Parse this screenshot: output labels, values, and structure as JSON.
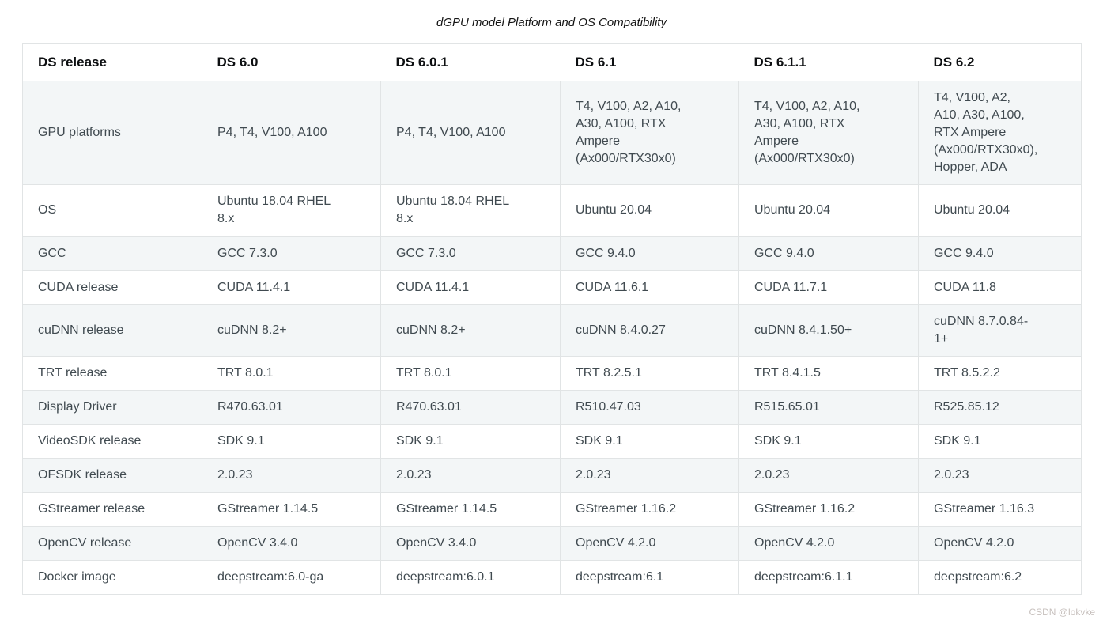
{
  "caption": "dGPU model Platform and OS Compatibility",
  "watermark": "CSDN @lokvke",
  "table": {
    "columns": [
      "DS release",
      "DS 6.0",
      "DS 6.0.1",
      "DS 6.1",
      "DS 6.1.1",
      "DS 6.2"
    ],
    "rows": [
      {
        "label": "GPU platforms",
        "values": [
          "P4, T4, V100, A100",
          "P4, T4, V100, A100",
          "T4, V100, A2, A10,\nA30, A100, RTX\nAmpere\n(Ax000/RTX30x0)",
          "T4, V100, A2, A10,\nA30, A100, RTX\nAmpere\n(Ax000/RTX30x0)",
          "T4, V100, A2,\nA10, A30, A100,\nRTX Ampere\n(Ax000/RTX30x0),\nHopper, ADA"
        ]
      },
      {
        "label": "OS",
        "values": [
          "Ubuntu 18.04 RHEL\n8.x",
          "Ubuntu 18.04 RHEL\n8.x",
          "Ubuntu 20.04",
          "Ubuntu 20.04",
          "Ubuntu 20.04"
        ]
      },
      {
        "label": "GCC",
        "values": [
          "GCC 7.3.0",
          "GCC 7.3.0",
          "GCC 9.4.0",
          "GCC 9.4.0",
          "GCC 9.4.0"
        ]
      },
      {
        "label": "CUDA release",
        "values": [
          "CUDA 11.4.1",
          "CUDA 11.4.1",
          "CUDA 11.6.1",
          "CUDA 11.7.1",
          "CUDA 11.8"
        ]
      },
      {
        "label": "cuDNN release",
        "values": [
          "cuDNN 8.2+",
          "cuDNN 8.2+",
          "cuDNN 8.4.0.27",
          "cuDNN 8.4.1.50+",
          "cuDNN 8.7.0.84-\n1+"
        ]
      },
      {
        "label": "TRT release",
        "values": [
          "TRT 8.0.1",
          "TRT 8.0.1",
          "TRT 8.2.5.1",
          "TRT 8.4.1.5",
          "TRT 8.5.2.2"
        ]
      },
      {
        "label": "Display Driver",
        "values": [
          "R470.63.01",
          "R470.63.01",
          "R510.47.03",
          "R515.65.01",
          "R525.85.12"
        ]
      },
      {
        "label": "VideoSDK release",
        "values": [
          "SDK 9.1",
          "SDK 9.1",
          "SDK 9.1",
          "SDK 9.1",
          "SDK 9.1"
        ]
      },
      {
        "label": "OFSDK release",
        "values": [
          "2.0.23",
          "2.0.23",
          "2.0.23",
          "2.0.23",
          "2.0.23"
        ]
      },
      {
        "label": "GStreamer release",
        "values": [
          "GStreamer 1.14.5",
          "GStreamer 1.14.5",
          "GStreamer 1.16.2",
          "GStreamer 1.16.2",
          "GStreamer 1.16.3"
        ]
      },
      {
        "label": "OpenCV release",
        "values": [
          "OpenCV 3.4.0",
          "OpenCV 3.4.0",
          "OpenCV 4.2.0",
          "OpenCV 4.2.0",
          "OpenCV 4.2.0"
        ]
      },
      {
        "label": "Docker image",
        "values": [
          "deepstream:6.0-ga",
          "deepstream:6.0.1",
          "deepstream:6.1",
          "deepstream:6.1.1",
          "deepstream:6.2"
        ]
      }
    ]
  },
  "colors": {
    "stripe": "#f3f6f7",
    "border": "#e1e4e5",
    "text": "#404a50",
    "header_text": "#0d0f11",
    "caption_text": "#141414",
    "watermark_text": "#c7c0bd"
  }
}
